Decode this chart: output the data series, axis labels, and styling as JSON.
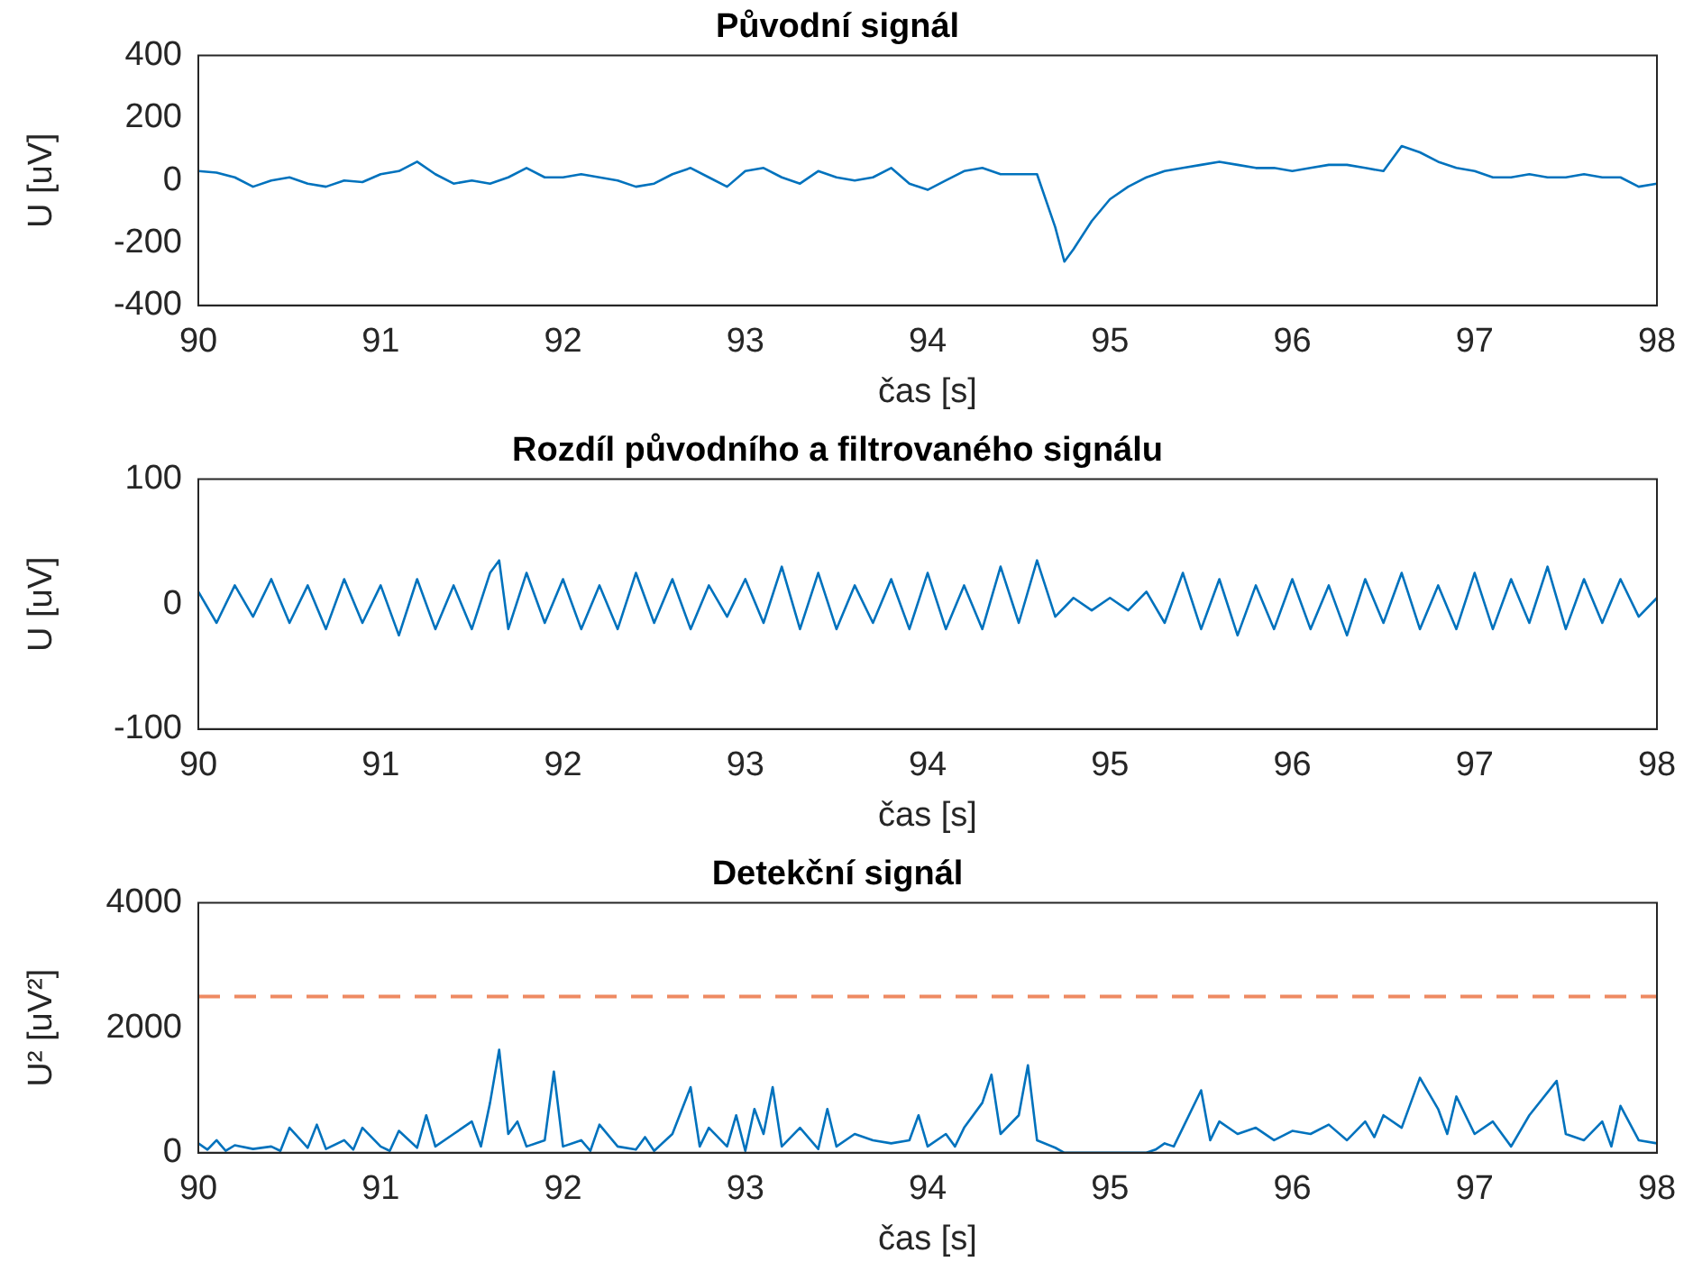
{
  "chart_data": [
    {
      "type": "line",
      "title": "Původní signál",
      "xlabel": "čas [s]",
      "ylabel": "U [uV]",
      "xlim": [
        90,
        98
      ],
      "xticks": [
        90,
        91,
        92,
        93,
        94,
        95,
        96,
        97,
        98
      ],
      "ylim": [
        -400,
        400
      ],
      "yticks": [
        -400,
        -200,
        0,
        200,
        400
      ],
      "grid": false,
      "legend": false,
      "marker": "none",
      "line_style": "solid",
      "series": [
        {
          "color": "#0072bd",
          "x": [
            90.0,
            90.1,
            90.2,
            90.3,
            90.4,
            90.5,
            90.6,
            90.7,
            90.8,
            90.9,
            91.0,
            91.1,
            91.2,
            91.3,
            91.4,
            91.5,
            91.6,
            91.7,
            91.8,
            91.9,
            92.0,
            92.1,
            92.2,
            92.3,
            92.4,
            92.5,
            92.6,
            92.7,
            92.8,
            92.9,
            93.0,
            93.1,
            93.2,
            93.3,
            93.4,
            93.5,
            93.6,
            93.7,
            93.8,
            93.9,
            94.0,
            94.1,
            94.2,
            94.3,
            94.4,
            94.5,
            94.6,
            94.7,
            94.75,
            94.8,
            94.9,
            95.0,
            95.1,
            95.2,
            95.3,
            95.4,
            95.5,
            95.6,
            95.7,
            95.8,
            95.9,
            96.0,
            96.1,
            96.2,
            96.3,
            96.4,
            96.5,
            96.6,
            96.7,
            96.8,
            96.9,
            97.0,
            97.1,
            97.2,
            97.3,
            97.4,
            97.5,
            97.6,
            97.7,
            97.8,
            97.9,
            98.0
          ],
          "values": [
            30,
            25,
            10,
            -20,
            0,
            10,
            -10,
            -20,
            0,
            -5,
            20,
            30,
            60,
            20,
            -10,
            0,
            -10,
            10,
            40,
            10,
            10,
            20,
            10,
            0,
            -20,
            -10,
            20,
            40,
            10,
            -20,
            30,
            40,
            10,
            -10,
            30,
            10,
            0,
            10,
            40,
            -10,
            -30,
            0,
            30,
            40,
            20,
            20,
            20,
            -150,
            -260,
            -220,
            -130,
            -60,
            -20,
            10,
            30,
            40,
            50,
            60,
            50,
            40,
            40,
            30,
            40,
            50,
            50,
            40,
            30,
            110,
            90,
            60,
            40,
            30,
            10,
            10,
            20,
            10,
            10,
            20,
            10,
            10,
            -20,
            -10
          ]
        }
      ]
    },
    {
      "type": "line",
      "title": "Rozdíl původního a filtrovaného signálu",
      "xlabel": "čas [s]",
      "ylabel": "U [uV]",
      "xlim": [
        90,
        98
      ],
      "xticks": [
        90,
        91,
        92,
        93,
        94,
        95,
        96,
        97,
        98
      ],
      "ylim": [
        -100,
        100
      ],
      "yticks": [
        -100,
        0,
        100
      ],
      "grid": false,
      "legend": false,
      "marker": "none",
      "line_style": "solid",
      "series": [
        {
          "color": "#0072bd",
          "x": [
            90.0,
            90.1,
            90.2,
            90.3,
            90.4,
            90.5,
            90.6,
            90.7,
            90.8,
            90.9,
            91.0,
            91.1,
            91.2,
            91.3,
            91.4,
            91.5,
            91.6,
            91.65,
            91.7,
            91.8,
            91.9,
            92.0,
            92.1,
            92.2,
            92.3,
            92.4,
            92.5,
            92.6,
            92.7,
            92.8,
            92.9,
            93.0,
            93.1,
            93.2,
            93.3,
            93.4,
            93.5,
            93.6,
            93.7,
            93.8,
            93.9,
            94.0,
            94.1,
            94.2,
            94.3,
            94.4,
            94.5,
            94.6,
            94.7,
            94.8,
            94.9,
            95.0,
            95.1,
            95.2,
            95.3,
            95.4,
            95.5,
            95.6,
            95.7,
            95.8,
            95.9,
            96.0,
            96.1,
            96.2,
            96.3,
            96.4,
            96.5,
            96.6,
            96.7,
            96.8,
            96.9,
            97.0,
            97.1,
            97.2,
            97.3,
            97.4,
            97.5,
            97.6,
            97.7,
            97.8,
            97.9,
            98.0
          ],
          "values": [
            10,
            -15,
            15,
            -10,
            20,
            -15,
            15,
            -20,
            20,
            -15,
            15,
            -25,
            20,
            -20,
            15,
            -20,
            25,
            35,
            -20,
            25,
            -15,
            20,
            -20,
            15,
            -20,
            25,
            -15,
            20,
            -20,
            15,
            -10,
            20,
            -15,
            30,
            -20,
            25,
            -20,
            15,
            -15,
            20,
            -20,
            25,
            -20,
            15,
            -20,
            30,
            -15,
            35,
            -10,
            5,
            -5,
            5,
            -5,
            10,
            -15,
            25,
            -20,
            20,
            -25,
            15,
            -20,
            20,
            -20,
            15,
            -25,
            20,
            -15,
            25,
            -20,
            15,
            -20,
            25,
            -20,
            20,
            -15,
            30,
            -20,
            20,
            -15,
            20,
            -10,
            5
          ]
        }
      ]
    },
    {
      "type": "line",
      "title": "Detekční signál",
      "xlabel": "čas [s]",
      "ylabel": "U² [uV²]",
      "xlim": [
        90,
        98
      ],
      "xticks": [
        90,
        91,
        92,
        93,
        94,
        95,
        96,
        97,
        98
      ],
      "ylim": [
        0,
        4000
      ],
      "yticks": [
        0,
        2000,
        4000
      ],
      "grid": false,
      "legend": false,
      "marker": "none",
      "line_style": "solid",
      "ref_lines": [
        {
          "axis": "y",
          "value": 2500,
          "color": "#ee8a62",
          "line_style": "dashed"
        }
      ],
      "series": [
        {
          "color": "#0072bd",
          "x": [
            90.0,
            90.05,
            90.1,
            90.15,
            90.2,
            90.3,
            90.4,
            90.45,
            90.5,
            90.6,
            90.65,
            90.7,
            90.8,
            90.85,
            90.9,
            91.0,
            91.05,
            91.1,
            91.2,
            91.25,
            91.3,
            91.4,
            91.5,
            91.55,
            91.6,
            91.65,
            91.7,
            91.75,
            91.8,
            91.9,
            91.95,
            92.0,
            92.1,
            92.15,
            92.2,
            92.3,
            92.4,
            92.45,
            92.5,
            92.6,
            92.7,
            92.75,
            92.8,
            92.9,
            92.95,
            93.0,
            93.05,
            93.1,
            93.15,
            93.2,
            93.3,
            93.4,
            93.45,
            93.5,
            93.6,
            93.7,
            93.8,
            93.9,
            93.95,
            94.0,
            94.1,
            94.15,
            94.2,
            94.3,
            94.35,
            94.4,
            94.5,
            94.55,
            94.6,
            94.7,
            94.75,
            95.2,
            95.25,
            95.3,
            95.35,
            95.4,
            95.5,
            95.55,
            95.6,
            95.7,
            95.8,
            95.9,
            96.0,
            96.1,
            96.2,
            96.3,
            96.4,
            96.45,
            96.5,
            96.6,
            96.7,
            96.8,
            96.85,
            96.9,
            97.0,
            97.1,
            97.2,
            97.3,
            97.45,
            97.5,
            97.6,
            97.7,
            97.75,
            97.8,
            97.9,
            98.0
          ],
          "values": [
            150,
            50,
            200,
            30,
            120,
            60,
            100,
            30,
            400,
            80,
            450,
            60,
            200,
            50,
            400,
            100,
            30,
            350,
            80,
            600,
            100,
            300,
            500,
            100,
            800,
            1650,
            300,
            500,
            100,
            200,
            1300,
            100,
            200,
            30,
            450,
            100,
            50,
            250,
            30,
            300,
            1050,
            100,
            400,
            100,
            600,
            30,
            700,
            300,
            1050,
            100,
            400,
            60,
            700,
            100,
            300,
            200,
            150,
            200,
            600,
            100,
            300,
            100,
            400,
            800,
            1250,
            300,
            600,
            1400,
            200,
            80,
            0,
            0,
            50,
            150,
            100,
            400,
            1000,
            200,
            500,
            300,
            400,
            200,
            350,
            300,
            450,
            200,
            500,
            250,
            600,
            400,
            1200,
            700,
            300,
            900,
            300,
            500,
            100,
            600,
            1150,
            300,
            200,
            500,
            100,
            750,
            200,
            150
          ]
        }
      ]
    }
  ]
}
